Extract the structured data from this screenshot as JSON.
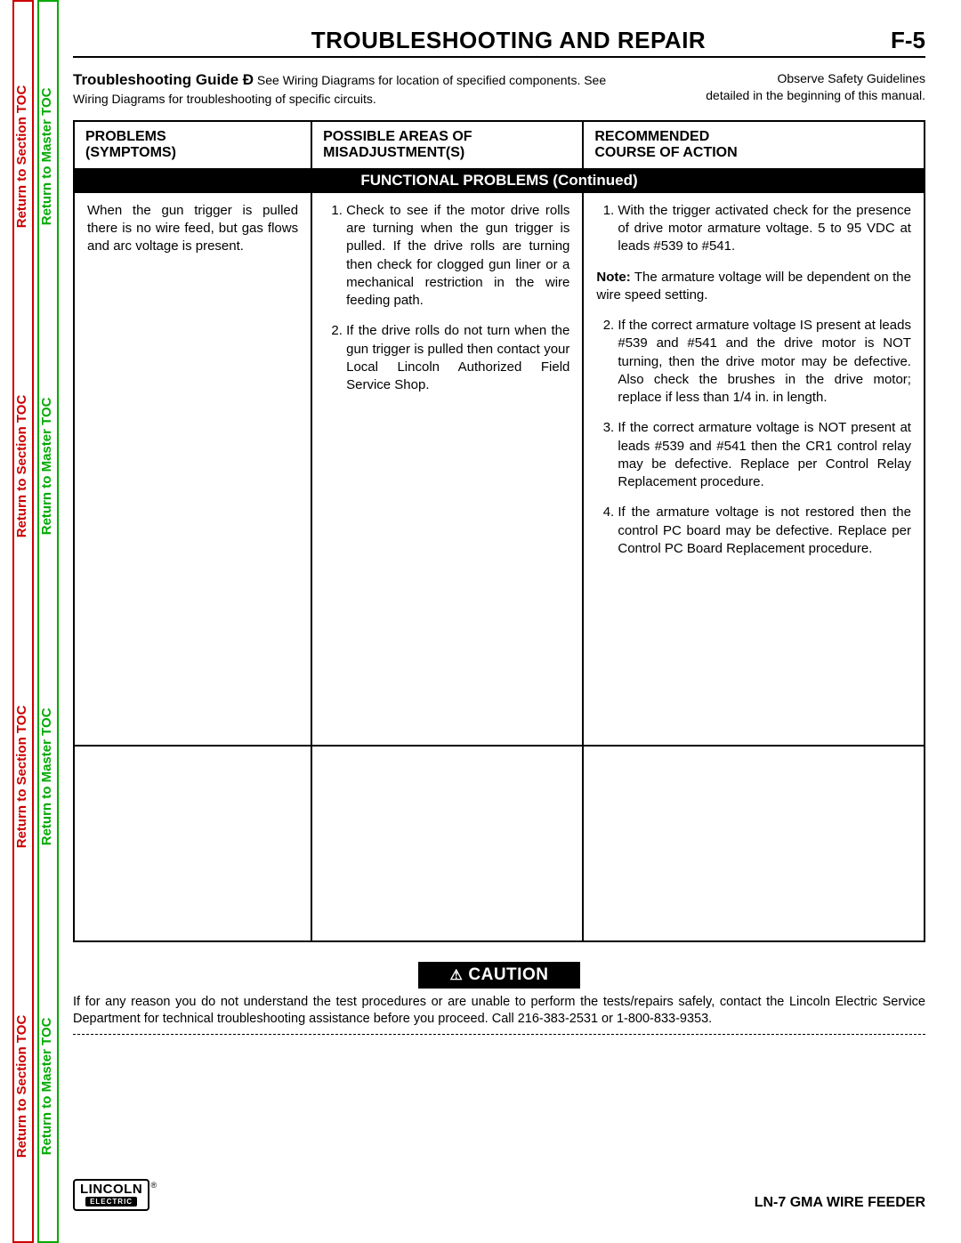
{
  "colors": {
    "red": "#cc0000",
    "green": "#00aa00",
    "black": "#000000",
    "white": "#ffffff"
  },
  "sideTabs": {
    "red_label": "Return to Section TOC",
    "green_label": "Return to Master TOC",
    "segments": 4
  },
  "header": {
    "title": "TROUBLESHOOTING AND REPAIR",
    "page_number": "F-5"
  },
  "guide": {
    "lead_bold": "Troubleshooting Guide Ð",
    "lead_rest": " See Wiring Diagrams for location of specified components. See Wiring Diagrams for troubleshooting of specific circuits.",
    "right_line1": "Observe Safety Guidelines",
    "right_line2": "detailed in the beginning of this manual."
  },
  "table": {
    "headers": {
      "problems_l1": "PROBLEMS",
      "problems_l2": "(SYMPTOMS)",
      "areas_l1": "POSSIBLE AREAS OF",
      "areas_l2": "MISADJUSTMENT(S)",
      "action_l1": "RECOMMENDED",
      "action_l2": "COURSE OF ACTION"
    },
    "banner": "FUNCTIONAL PROBLEMS (Continued)",
    "problem_text": "When the gun trigger is pulled there is no wire feed, but gas flows and arc voltage is present.",
    "misadjustments": [
      "Check to see if the motor drive rolls are turning when the gun trigger is pulled. If the drive rolls are turning then check for clogged gun liner or a mechanical restriction in the wire feeding path.",
      "If the drive rolls do not turn when the gun trigger is pulled then contact your Local Lincoln Authorized Field Service Shop."
    ],
    "action_item1": "With the trigger activated check for the presence of drive motor armature voltage. 5 to 95 VDC at leads #539 to #541.",
    "action_note_label": "Note:",
    "action_note_text": " The armature voltage will be dependent on the wire speed setting.",
    "actions_rest": [
      "If the correct armature voltage IS present at leads #539 and #541 and the drive motor is NOT turning, then the drive motor may be defective. Also check the brushes in the drive motor; replace if less than 1/4 in. in length.",
      "If the correct armature voltage is NOT present at leads #539 and #541 then the CR1 control relay may be defective. Replace per Control Relay Replacement procedure.",
      "If the armature voltage is not restored then the control PC board may be defective. Replace per Control PC Board Replacement procedure."
    ]
  },
  "caution": {
    "label": "CAUTION",
    "warning_symbol": "⚠",
    "text": "If for any reason you do not understand the test procedures or are unable to perform the tests/repairs safely, contact the Lincoln Electric Service Department for technical troubleshooting assistance before you proceed. Call 216-383-2531 or 1-800-833-9353."
  },
  "footer": {
    "logo_top": "LINCOLN",
    "logo_bottom": "ELECTRIC",
    "logo_reg": "®",
    "product": "LN-7 GMA WIRE FEEDER"
  }
}
